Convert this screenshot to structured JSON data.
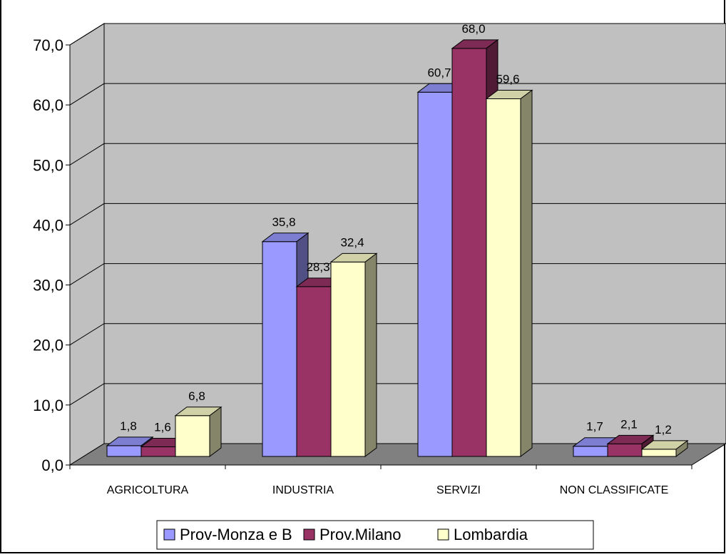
{
  "chart_data": {
    "type": "bar",
    "title": "",
    "xlabel": "",
    "ylabel": "",
    "categories": [
      "AGRICOLTURA",
      "INDUSTRIA",
      "SERVIZI",
      "NON CLASSIFICATE"
    ],
    "series": [
      {
        "name": "Prov-Monza e B",
        "color": "#9999ff",
        "values": [
          1.8,
          35.8,
          60.7,
          1.7
        ],
        "labels": [
          "1,8",
          "35,8",
          "60,7",
          "1,7"
        ]
      },
      {
        "name": "Prov.Milano",
        "color": "#993366",
        "values": [
          1.6,
          28.3,
          68.0,
          2.1
        ],
        "labels": [
          "1,6",
          "28,3",
          "68,0",
          "2,1"
        ]
      },
      {
        "name": "Lombardia",
        "color": "#ffffcc",
        "values": [
          6.8,
          32.4,
          59.6,
          1.2
        ],
        "labels": [
          "6,8",
          "32,4",
          "59,6",
          "1,2"
        ]
      }
    ],
    "ylim": [
      0,
      70
    ],
    "yticks": [
      "0,0",
      "10,0",
      "20,0",
      "30,0",
      "40,0",
      "50,0",
      "60,0",
      "70,0"
    ],
    "grid": true,
    "legend": "bottom",
    "wall_color": "#c0c0c0",
    "floor_color": "#808080"
  }
}
